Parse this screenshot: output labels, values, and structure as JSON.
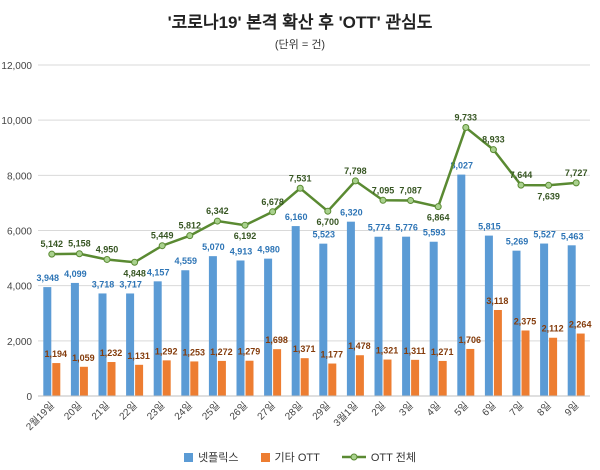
{
  "chart_data": {
    "type": "bar+line",
    "title": "'코로나19' 본격 확산 후 'OTT' 관심도",
    "subtitle": "(단위 = 건)",
    "categories": [
      "2월19일",
      "20일",
      "21일",
      "22일",
      "23일",
      "24일",
      "25일",
      "26일",
      "27일",
      "28일",
      "29일",
      "3월1일",
      "2일",
      "3일",
      "4일",
      "5일",
      "6일",
      "7일",
      "8일",
      "9일"
    ],
    "ylim": [
      0,
      12000
    ],
    "yticks": [
      "0",
      "2,000",
      "4,000",
      "6,000",
      "8,000",
      "10,000",
      "12,000"
    ],
    "grid": true,
    "legend_position": "bottom",
    "series": [
      {
        "name": "넷플릭스",
        "type": "bar",
        "color": "#5b9bd5",
        "label_color": "#2e75b6",
        "values": [
          3948,
          4099,
          3718,
          3717,
          4157,
          4559,
          5070,
          4913,
          4980,
          6160,
          5523,
          6320,
          5774,
          5776,
          5593,
          8027,
          5815,
          5269,
          5527,
          5463
        ]
      },
      {
        "name": "기타 OTT",
        "type": "bar",
        "color": "#ed7d31",
        "label_color": "#843c0c",
        "values": [
          1194,
          1059,
          1232,
          1131,
          1292,
          1253,
          1272,
          1279,
          1698,
          1371,
          1177,
          1478,
          1321,
          1311,
          1271,
          1706,
          3118,
          2375,
          2112,
          2264
        ]
      },
      {
        "name": "OTT 전체",
        "type": "line",
        "color": "#5a8a32",
        "label_color": "#375623",
        "values": [
          5142,
          5158,
          4950,
          4848,
          5449,
          5812,
          6342,
          6192,
          6678,
          7531,
          6700,
          7798,
          7095,
          7087,
          6864,
          9733,
          8933,
          7644,
          7639,
          7727
        ]
      }
    ]
  }
}
